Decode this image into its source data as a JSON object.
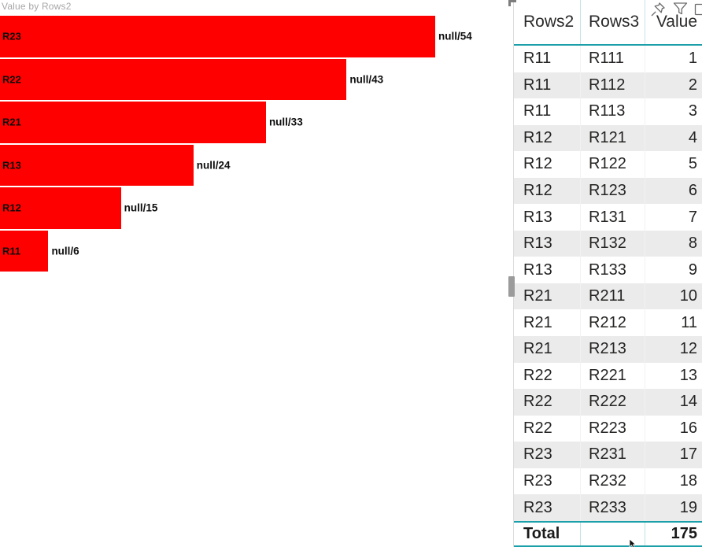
{
  "chart_data": {
    "type": "bar",
    "orientation": "horizontal",
    "title": "Value by Rows2",
    "categories": [
      "R23",
      "R22",
      "R21",
      "R13",
      "R12",
      "R11"
    ],
    "values": [
      54,
      43,
      33,
      24,
      15,
      6
    ],
    "data_labels": [
      "null/54",
      "null/43",
      "null/33",
      "null/24",
      "null/15",
      "null/6"
    ],
    "xlim": [
      0,
      54
    ],
    "axis_hidden": true,
    "bar_color": "#fe0000",
    "legend": "none"
  },
  "table": {
    "columns": [
      "Rows2",
      "Rows3",
      "Value"
    ],
    "rows": [
      {
        "rows2": "R11",
        "rows3": "R111",
        "value": "1"
      },
      {
        "rows2": "R11",
        "rows3": "R112",
        "value": "2"
      },
      {
        "rows2": "R11",
        "rows3": "R113",
        "value": "3"
      },
      {
        "rows2": "R12",
        "rows3": "R121",
        "value": "4"
      },
      {
        "rows2": "R12",
        "rows3": "R122",
        "value": "5"
      },
      {
        "rows2": "R12",
        "rows3": "R123",
        "value": "6"
      },
      {
        "rows2": "R13",
        "rows3": "R131",
        "value": "7"
      },
      {
        "rows2": "R13",
        "rows3": "R132",
        "value": "8"
      },
      {
        "rows2": "R13",
        "rows3": "R133",
        "value": "9"
      },
      {
        "rows2": "R21",
        "rows3": "R211",
        "value": "10"
      },
      {
        "rows2": "R21",
        "rows3": "R212",
        "value": "11"
      },
      {
        "rows2": "R21",
        "rows3": "R213",
        "value": "12"
      },
      {
        "rows2": "R22",
        "rows3": "R221",
        "value": "13"
      },
      {
        "rows2": "R22",
        "rows3": "R222",
        "value": "14"
      },
      {
        "rows2": "R22",
        "rows3": "R223",
        "value": "16"
      },
      {
        "rows2": "R23",
        "rows3": "R231",
        "value": "17"
      },
      {
        "rows2": "R23",
        "rows3": "R232",
        "value": "18"
      },
      {
        "rows2": "R23",
        "rows3": "R233",
        "value": "19"
      }
    ],
    "total": {
      "label": "Total",
      "value": "175"
    }
  },
  "visual_header": {
    "icons": [
      "pin-icon",
      "filter-icon",
      "partial-square-icon"
    ]
  },
  "colors": {
    "bar_red": "#fe0000",
    "accent_teal": "#1b9fa8",
    "light_teal": "#c5e2e8",
    "alt_row_gray": "#ebebeb",
    "title_gray": "#a6a6a6",
    "icon_gray": "#6a6a6a",
    "text": "#252423"
  }
}
